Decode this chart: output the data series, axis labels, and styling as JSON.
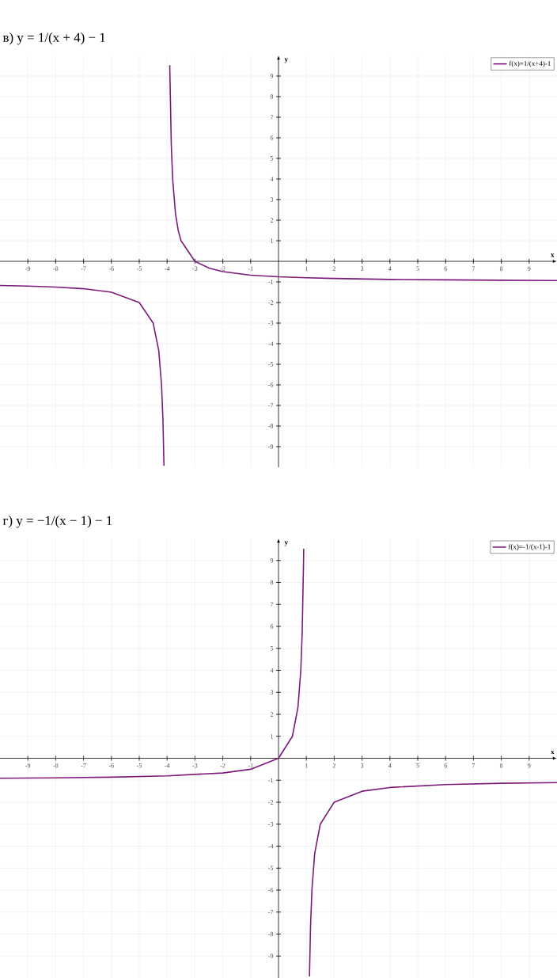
{
  "chart_data": [
    {
      "type": "line",
      "title": "в) y = 1/(x + 4) − 1",
      "xlabel": "x",
      "ylabel": "y",
      "xlim": [
        -10,
        10
      ],
      "ylim": [
        -10,
        10
      ],
      "xticks": [
        -9,
        -8,
        -7,
        -6,
        -5,
        -4,
        -3,
        -2,
        -1,
        1,
        2,
        3,
        4,
        5,
        6,
        7,
        8,
        9
      ],
      "yticks": [
        -9,
        -8,
        -7,
        -6,
        -5,
        -4,
        -3,
        -2,
        -1,
        1,
        2,
        3,
        4,
        5,
        6,
        7,
        8,
        9
      ],
      "grid": true,
      "legend": "top right",
      "series": [
        {
          "name": "f(x)=1/(x+4)-1",
          "color": "#7b1a7b",
          "x": [
            -10,
            -9,
            -8,
            -7,
            -6,
            -5,
            -4.5,
            -4.3,
            -4.2,
            -4.15,
            -4.112,
            null,
            -3.905,
            -3.85,
            -3.8,
            -3.7,
            -3.6,
            -3.5,
            -3,
            -2.5,
            -2,
            -1,
            0,
            1,
            2,
            4,
            6,
            8,
            10
          ],
          "values": [
            -1.17,
            -1.2,
            -1.25,
            -1.33,
            -1.5,
            -2,
            -3,
            -4.33,
            -6,
            -7.67,
            -9.93,
            null,
            9.53,
            5.67,
            4,
            2.33,
            1.5,
            1,
            0,
            -0.33,
            -0.5,
            -0.67,
            -0.75,
            -0.8,
            -0.83,
            -0.88,
            -0.9,
            -0.92,
            -0.93
          ]
        }
      ]
    },
    {
      "type": "line",
      "title": "г) y = −1/(x − 1) − 1",
      "xlabel": "x",
      "ylabel": "y",
      "xlim": [
        -10,
        10
      ],
      "ylim": [
        -10,
        10
      ],
      "xticks": [
        -9,
        -8,
        -7,
        -6,
        -5,
        -4,
        -3,
        -2,
        -1,
        1,
        2,
        3,
        4,
        5,
        6,
        7,
        8,
        9
      ],
      "yticks": [
        -9,
        -8,
        -7,
        -6,
        -5,
        -4,
        -3,
        -2,
        -1,
        1,
        2,
        3,
        4,
        5,
        6,
        7,
        8,
        9
      ],
      "grid": true,
      "legend": "top right",
      "series": [
        {
          "name": "f(x)=-1/(x-1)-1",
          "color": "#7b1a7b",
          "x": [
            -10,
            -8,
            -6,
            -4,
            -2,
            -1,
            0,
            0.5,
            0.7,
            0.8,
            0.85,
            0.9,
            0.905,
            null,
            1.112,
            1.15,
            1.2,
            1.3,
            1.5,
            2,
            3,
            4,
            6,
            8,
            10
          ],
          "values": [
            -0.91,
            -0.89,
            -0.86,
            -0.8,
            -0.67,
            -0.5,
            0,
            1,
            2.33,
            4,
            5.67,
            9,
            9.53,
            null,
            -9.93,
            -7.67,
            -6,
            -4.33,
            -3,
            -2,
            -1.5,
            -1.33,
            -1.2,
            -1.14,
            -1.11
          ]
        }
      ]
    }
  ]
}
